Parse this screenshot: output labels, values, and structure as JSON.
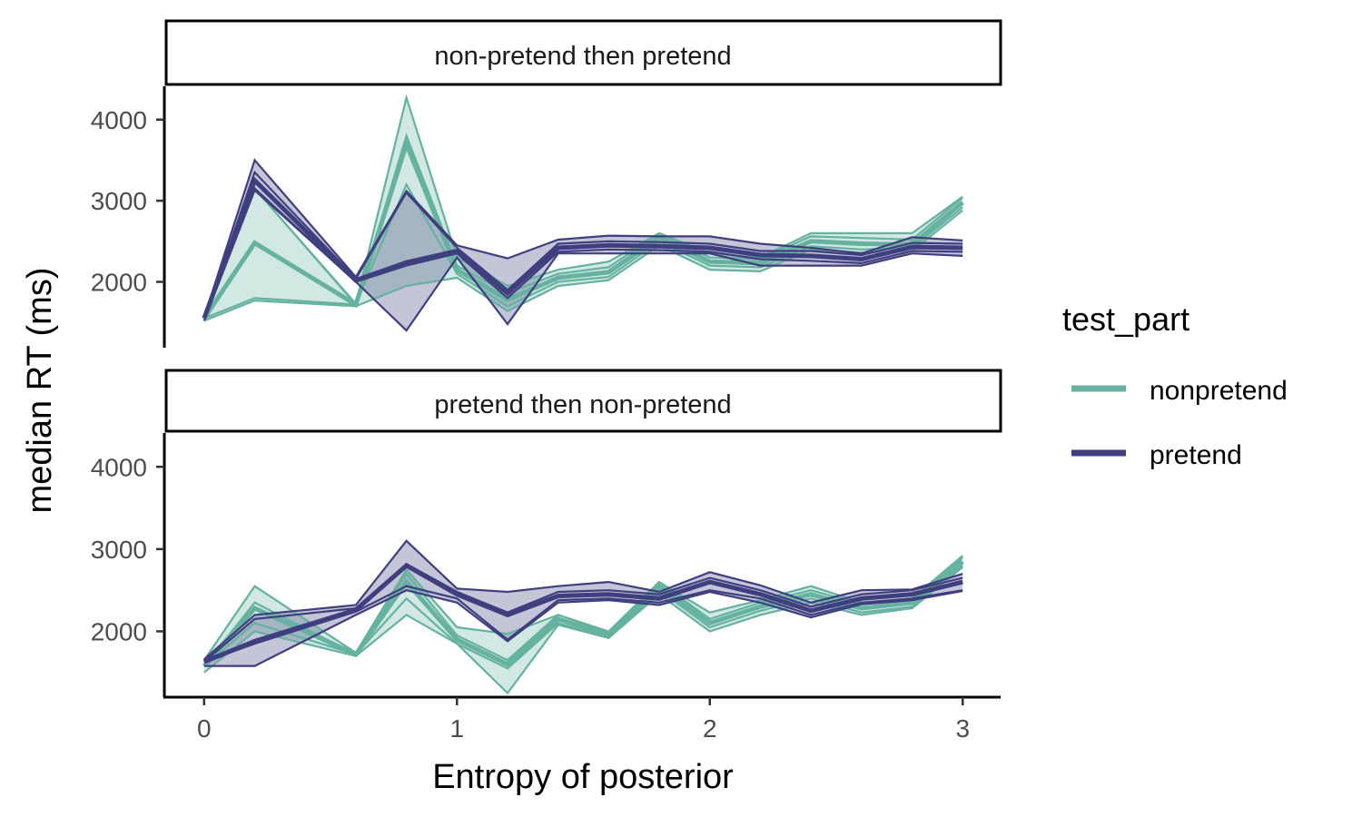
{
  "chart_data": {
    "type": "line",
    "xlabel": "Entropy of posterior",
    "ylabel": "median RT (ms)",
    "xlim": [
      -0.15,
      3.15
    ],
    "ylim": [
      1200,
      4400
    ],
    "x_ticks": [
      0,
      1,
      2,
      3
    ],
    "y_ticks": [
      2000,
      3000,
      4000
    ],
    "grid": false,
    "legend": {
      "title": "test_part",
      "placement": "right",
      "entries": [
        {
          "label": "nonpretend",
          "color": "#66b2a1"
        },
        {
          "label": "pretend",
          "color": "#3f3f7f"
        }
      ]
    },
    "panels": [
      {
        "strip_label": "non-pretend then pretend",
        "series": [
          {
            "name": "nonpretend",
            "color": "#66b2a1",
            "x": [
              0,
              0.2,
              0.6,
              0.8,
              1.0,
              1.2,
              1.4,
              1.6,
              1.8,
              2.0,
              2.2,
              2.4,
              2.6,
              2.8,
              3.0
            ],
            "median": [
              1550,
              2480,
              1720,
              3700,
              2150,
              1780,
              2050,
              2120,
              2550,
              2250,
              2230,
              2500,
              2470,
              2460,
              2980
            ],
            "inner_low": [
              1550,
              1800,
              1720,
              3200,
              2100,
              1700,
              2000,
              2060,
              2500,
              2200,
              2180,
              2440,
              2400,
              2420,
              2920
            ],
            "inner_high": [
              1550,
              3150,
              1720,
              3800,
              2200,
              1860,
              2100,
              2180,
              2600,
              2300,
              2280,
              2560,
              2540,
              2520,
              3040
            ],
            "ribbon_low": [
              1520,
              1770,
              1700,
              1950,
              2050,
              1640,
              1950,
              2020,
              2450,
              2150,
              2130,
              2400,
              2360,
              2380,
              2880
            ],
            "ribbon_high": [
              1560,
              3150,
              1730,
              4270,
              2300,
              1950,
              2150,
              2250,
              2600,
              2350,
              2300,
              2600,
              2600,
              2600,
              3050
            ]
          },
          {
            "name": "pretend",
            "color": "#3f3f7f",
            "x": [
              0,
              0.2,
              0.6,
              0.8,
              1.0,
              1.2,
              1.4,
              1.6,
              1.8,
              2.0,
              2.2,
              2.4,
              2.6,
              2.8,
              3.0
            ],
            "median": [
              1550,
              3250,
              2020,
              2240,
              2380,
              1860,
              2420,
              2450,
              2440,
              2420,
              2330,
              2320,
              2280,
              2430,
              2420
            ],
            "inner_low": [
              1550,
              3150,
              2000,
              2200,
              2350,
              1800,
              2370,
              2400,
              2390,
              2370,
              2280,
              2260,
              2230,
              2380,
              2370
            ],
            "inner_high": [
              1550,
              3350,
              2040,
              3100,
              2420,
              1900,
              2470,
              2500,
              2490,
              2470,
              2380,
              2380,
              2330,
              2480,
              2470
            ],
            "ribbon_low": [
              1520,
              3130,
              2000,
              1400,
              2300,
              1480,
              2350,
              2350,
              2350,
              2350,
              2200,
              2200,
              2200,
              2350,
              2320
            ],
            "ribbon_high": [
              1560,
              3500,
              2060,
              3120,
              2450,
              2290,
              2520,
              2570,
              2560,
              2560,
              2470,
              2420,
              2350,
              2550,
              2510
            ]
          }
        ]
      },
      {
        "strip_label": "pretend then non-pretend",
        "series": [
          {
            "name": "nonpretend",
            "color": "#66b2a1",
            "x": [
              0,
              0.2,
              0.6,
              0.8,
              1.0,
              1.2,
              1.4,
              1.6,
              1.8,
              2.0,
              2.2,
              2.4,
              2.6,
              2.8,
              3.0
            ],
            "median": [
              1580,
              2280,
              1720,
              2600,
              1900,
              1600,
              2150,
              1950,
              2550,
              2100,
              2300,
              2450,
              2280,
              2350,
              2850
            ],
            "inner_low": [
              1580,
              2100,
              1720,
              2400,
              1850,
              1550,
              2100,
              1920,
              2500,
              2050,
              2250,
              2400,
              2230,
              2300,
              2800
            ],
            "inner_high": [
              1580,
              2350,
              1720,
              2700,
              1950,
              1650,
              2200,
              1980,
              2600,
              2150,
              2350,
              2500,
              2330,
              2400,
              2900
            ],
            "ribbon_low": [
              1500,
              2000,
              1700,
              2200,
              1850,
              1250,
              2080,
              1920,
              2450,
              2000,
              2200,
              2350,
              2200,
              2280,
              2780
            ],
            "ribbon_high": [
              1650,
              2550,
              1740,
              2750,
              2050,
              1970,
              2200,
              2000,
              2600,
              2230,
              2380,
              2550,
              2350,
              2400,
              2920
            ]
          },
          {
            "name": "pretend",
            "color": "#3f3f7f",
            "x": [
              0,
              0.2,
              0.6,
              0.8,
              1.0,
              1.2,
              1.4,
              1.6,
              1.8,
              2.0,
              2.2,
              2.4,
              2.6,
              2.8,
              3.0
            ],
            "median": [
              1630,
              1880,
              2260,
              2800,
              2450,
              2200,
              2430,
              2450,
              2400,
              2600,
              2450,
              2250,
              2400,
              2450,
              2600
            ],
            "inner_low": [
              1630,
              1850,
              2240,
              2550,
              2400,
              1900,
              2380,
              2400,
              2350,
              2500,
              2400,
              2200,
              2350,
              2400,
              2500
            ],
            "inner_high": [
              1630,
              2150,
              2280,
              2820,
              2480,
              2230,
              2480,
              2500,
              2450,
              2650,
              2500,
              2300,
              2450,
              2500,
              2650
            ],
            "ribbon_low": [
              1580,
              1580,
              2200,
              2500,
              2350,
              1880,
              2350,
              2380,
              2320,
              2480,
              2350,
              2170,
              2330,
              2380,
              2490
            ],
            "ribbon_high": [
              1660,
              2200,
              2320,
              3100,
              2520,
              2480,
              2550,
              2600,
              2480,
              2720,
              2560,
              2350,
              2500,
              2510,
              2700
            ]
          }
        ]
      }
    ]
  }
}
